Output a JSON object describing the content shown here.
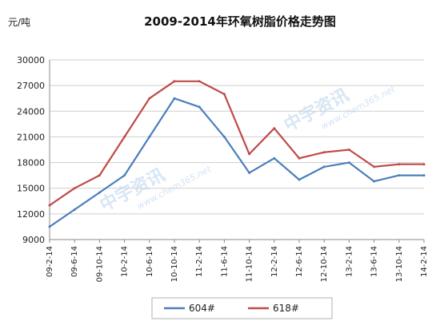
{
  "chart_data": {
    "type": "line",
    "title": "2009-2014年环氧树脂价格走势图",
    "ylabel": "元/吨",
    "xlabel": "",
    "ylim": [
      9000,
      30000
    ],
    "yticks": [
      9000,
      12000,
      15000,
      18000,
      21000,
      24000,
      27000,
      30000
    ],
    "grid": "horizontal",
    "legend_position": "bottom",
    "x": [
      "09-2-14",
      "09-6-14",
      "09-10-14",
      "10-2-14",
      "10-6-14",
      "10-10-14",
      "11-2-14",
      "11-6-14",
      "11-10-14",
      "12-2-14",
      "12-6-14",
      "12-10-14",
      "13-2-14",
      "13-6-14",
      "13-10-14",
      "14-2-14"
    ],
    "series": [
      {
        "name": "604#",
        "color": "#4a7ebb",
        "values": [
          10500,
          12500,
          14500,
          16500,
          21000,
          25500,
          24500,
          21000,
          16800,
          18500,
          16000,
          17500,
          18000,
          15800,
          16500,
          16500
        ]
      },
      {
        "name": "618#",
        "color": "#be4b48",
        "values": [
          13000,
          15000,
          16500,
          21000,
          25500,
          27500,
          27500,
          26000,
          19000,
          22000,
          18500,
          19200,
          19500,
          17500,
          17800,
          17800
        ]
      }
    ]
  },
  "watermark": {
    "text": "中宇资讯",
    "url": "www.chem365.net"
  }
}
